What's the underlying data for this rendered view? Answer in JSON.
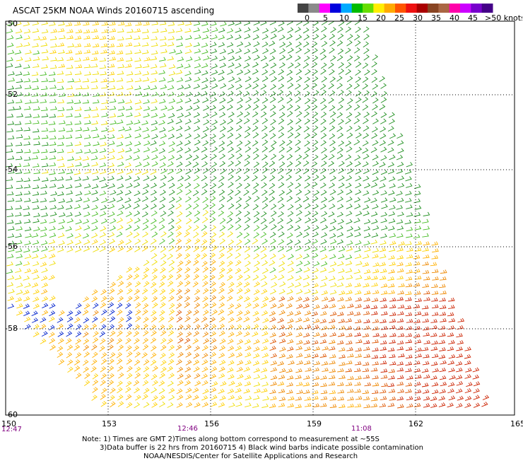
{
  "title": "ASCAT 25KM NOAA Winds 20160715 ascending",
  "colorbar": {
    "labels": [
      "0",
      "5",
      "10",
      "15",
      "20",
      "25",
      "30",
      "35",
      "40",
      "45",
      ">50 knots"
    ],
    "colors": [
      "#444444",
      "#8a8a8a",
      "#ff00ff",
      "#0000dd",
      "#00aaff",
      "#00bb00",
      "#66dd00",
      "#ffee00",
      "#ffaa00",
      "#ff5500",
      "#ee1111",
      "#aa0000",
      "#884422",
      "#aa6644",
      "#ff00aa",
      "#cc00ff",
      "#7700cc",
      "#440088"
    ]
  },
  "map": {
    "lon_labels": [
      "150",
      "153",
      "156",
      "159",
      "162",
      "165"
    ],
    "lat_labels": [
      "-50",
      "-52",
      "-54",
      "-56",
      "-58",
      "-60"
    ],
    "time_labels": [
      "12:47",
      "12:46",
      "11:08"
    ]
  },
  "notes": {
    "line1": "Note: 1) Times are GMT 2)Times along bottom correspond to measurement at ~55S",
    "line2": "3)Data buffer is 22 hrs from 20160715 4) Black wind barbs indicate possible contamination",
    "line3": "NOAA/NESDIS/Center for Satellite Applications and Research"
  }
}
